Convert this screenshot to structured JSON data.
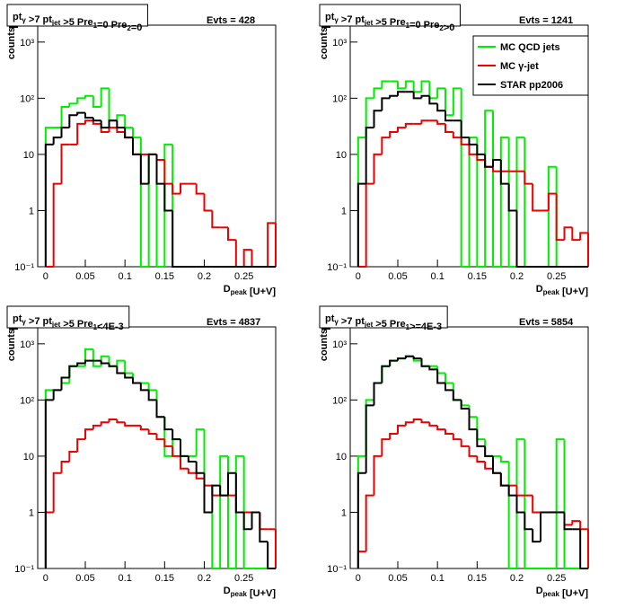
{
  "chart_data": [
    {
      "type": "histogram",
      "title_parts": [
        {
          "t": "pt",
          "sub": "γ"
        },
        {
          "t": " >7  pt",
          "sub": "jet"
        },
        {
          "t": " >5 Pre",
          "sub": "1"
        },
        {
          "t": "=0 Pre",
          "sub": "2"
        },
        {
          "t": "=0"
        }
      ],
      "events": "Evts = 428",
      "ylabel": "counts",
      "xlabel_parts": [
        {
          "t": "D",
          "sub": "peak"
        },
        {
          "t": "  [U+V]"
        }
      ],
      "bins": [
        0,
        0.01,
        0.02,
        0.03,
        0.04,
        0.05,
        0.06,
        0.07,
        0.08,
        0.09,
        0.1,
        0.11,
        0.12,
        0.13,
        0.14,
        0.15,
        0.16,
        0.17,
        0.18,
        0.19,
        0.2,
        0.21,
        0.22,
        0.23,
        0.24,
        0.25,
        0.26,
        0.27,
        0.28,
        0.29
      ],
      "xlim": [
        -0.01,
        0.29
      ],
      "xticks": [
        0,
        0.05,
        0.1,
        0.15,
        0.2,
        0.25
      ],
      "ylim": [
        0.1,
        2000
      ],
      "log_y": true,
      "yticks": [
        {
          "value": 0.1,
          "label": "10⁻¹"
        },
        1,
        10,
        {
          "value": 100,
          "label": "10²"
        },
        {
          "value": 1000,
          "label": "10³"
        }
      ],
      "series": [
        {
          "color": "#00ee00",
          "values": [
            30,
            30,
            70,
            80,
            100,
            110,
            70,
            150,
            40,
            50,
            30,
            20,
            0,
            10,
            0,
            15,
            0,
            0,
            0,
            0,
            0,
            0,
            0,
            0,
            0,
            0,
            0,
            0,
            0
          ]
        },
        {
          "color": "#ee0000",
          "values": [
            0,
            3,
            15,
            15,
            35,
            40,
            35,
            25,
            30,
            25,
            20,
            10,
            10,
            10,
            8,
            3,
            2,
            3,
            3,
            2,
            1,
            0.5,
            0.5,
            0.3,
            0,
            0.2,
            0,
            0,
            0.6
          ]
        },
        {
          "color": "#000000",
          "values": [
            15,
            20,
            30,
            50,
            55,
            45,
            40,
            30,
            40,
            30,
            20,
            10,
            3,
            10,
            3,
            1,
            0,
            0,
            0,
            0,
            0,
            0,
            0,
            0,
            0,
            0,
            0,
            0,
            0
          ]
        }
      ]
    },
    {
      "type": "histogram",
      "title_parts": [
        {
          "t": "pt",
          "sub": "γ"
        },
        {
          "t": " >7  pt",
          "sub": "jet"
        },
        {
          "t": " >5 Pre",
          "sub": "1"
        },
        {
          "t": "=0 Pre",
          "sub": "2"
        },
        {
          "t": ">0"
        }
      ],
      "events": "Evts = 1241",
      "ylabel": "counts",
      "xlabel_parts": [
        {
          "t": "D",
          "sub": "peak"
        },
        {
          "t": "  [U+V]"
        }
      ],
      "bins": [
        0,
        0.01,
        0.02,
        0.03,
        0.04,
        0.05,
        0.06,
        0.07,
        0.08,
        0.09,
        0.1,
        0.11,
        0.12,
        0.13,
        0.14,
        0.15,
        0.16,
        0.17,
        0.18,
        0.19,
        0.2,
        0.21,
        0.22,
        0.23,
        0.24,
        0.25,
        0.26,
        0.27,
        0.28,
        0.29
      ],
      "xlim": [
        -0.01,
        0.29
      ],
      "xticks": [
        0,
        0.05,
        0.1,
        0.15,
        0.2,
        0.25
      ],
      "ylim": [
        0.1,
        2000
      ],
      "log_y": true,
      "yticks": [
        {
          "value": 0.1,
          "label": "10⁻¹"
        },
        1,
        10,
        {
          "value": 100,
          "label": "10²"
        },
        {
          "value": 1000,
          "label": "10³"
        }
      ],
      "legend": "top-right",
      "series": [
        {
          "name": "MC QCD jets",
          "color": "#00ee00",
          "values": [
            20,
            100,
            150,
            200,
            200,
            150,
            200,
            130,
            200,
            100,
            150,
            50,
            150,
            0,
            20,
            0,
            60,
            0,
            20,
            0,
            20,
            0,
            0,
            0,
            6,
            0,
            0,
            0,
            0
          ]
        },
        {
          "name": "MC γ-jet",
          "color": "#ee0000",
          "values": [
            0,
            3,
            10,
            20,
            25,
            30,
            35,
            35,
            40,
            40,
            35,
            25,
            20,
            15,
            10,
            8,
            6,
            5,
            5,
            5,
            5,
            3,
            1,
            1,
            2,
            0.3,
            0.5,
            0.3,
            0.4
          ]
        },
        {
          "name": "STAR pp2006",
          "color": "#000000",
          "values": [
            3,
            30,
            60,
            100,
            110,
            130,
            130,
            100,
            110,
            80,
            60,
            40,
            40,
            20,
            15,
            10,
            6,
            8,
            3,
            1,
            0,
            0,
            0,
            0,
            0,
            0,
            0,
            0,
            0
          ]
        }
      ]
    },
    {
      "type": "histogram",
      "title_parts": [
        {
          "t": "pt",
          "sub": "γ"
        },
        {
          "t": " >7  pt",
          "sub": "jet"
        },
        {
          "t": " >5 Pre",
          "sub": "1"
        },
        {
          "t": "<4E-3"
        }
      ],
      "events": "Evts = 4837",
      "ylabel": "counts",
      "xlabel_parts": [
        {
          "t": "D",
          "sub": "peak"
        },
        {
          "t": "  [U+V]"
        }
      ],
      "bins": [
        0,
        0.01,
        0.02,
        0.03,
        0.04,
        0.05,
        0.06,
        0.07,
        0.08,
        0.09,
        0.1,
        0.11,
        0.12,
        0.13,
        0.14,
        0.15,
        0.16,
        0.17,
        0.18,
        0.19,
        0.2,
        0.21,
        0.22,
        0.23,
        0.24,
        0.25,
        0.26,
        0.27,
        0.28,
        0.29
      ],
      "xlim": [
        -0.01,
        0.29
      ],
      "xticks": [
        0,
        0.05,
        0.1,
        0.15,
        0.2,
        0.25
      ],
      "ylim": [
        0.1,
        2000
      ],
      "log_y": true,
      "yticks": [
        {
          "value": 0.1,
          "label": "10⁻¹"
        },
        1,
        10,
        {
          "value": 100,
          "label": "10²"
        },
        {
          "value": 1000,
          "label": "10³"
        }
      ],
      "series": [
        {
          "color": "#00ee00",
          "values": [
            150,
            150,
            200,
            400,
            400,
            800,
            400,
            600,
            400,
            500,
            300,
            200,
            200,
            150,
            50,
            10,
            20,
            10,
            10,
            30,
            1,
            0,
            10,
            0,
            10,
            0,
            0,
            0,
            0
          ]
        },
        {
          "color": "#ee0000",
          "values": [
            1,
            5,
            8,
            12,
            20,
            30,
            35,
            40,
            45,
            40,
            35,
            35,
            30,
            25,
            20,
            15,
            10,
            6,
            5,
            4,
            3,
            2,
            2,
            2,
            1,
            1,
            1,
            0.5,
            0.5
          ]
        },
        {
          "color": "#000000",
          "values": [
            100,
            150,
            250,
            400,
            450,
            500,
            500,
            450,
            400,
            300,
            250,
            200,
            150,
            100,
            50,
            30,
            20,
            10,
            8,
            5,
            1,
            3,
            2,
            5,
            1,
            0.5,
            1,
            0.3,
            0
          ]
        }
      ]
    },
    {
      "type": "histogram",
      "title_parts": [
        {
          "t": "pt",
          "sub": "γ"
        },
        {
          "t": " >7  pt",
          "sub": "jet"
        },
        {
          "t": " >5 Pre",
          "sub": "1"
        },
        {
          "t": ">=4E-3"
        }
      ],
      "events": "Evts = 5854",
      "ylabel": "counts",
      "xlabel_parts": [
        {
          "t": "D",
          "sub": "peak"
        },
        {
          "t": "  [U+V]"
        }
      ],
      "bins": [
        0,
        0.01,
        0.02,
        0.03,
        0.04,
        0.05,
        0.06,
        0.07,
        0.08,
        0.09,
        0.1,
        0.11,
        0.12,
        0.13,
        0.14,
        0.15,
        0.16,
        0.17,
        0.18,
        0.19,
        0.2,
        0.21,
        0.22,
        0.23,
        0.24,
        0.25,
        0.26,
        0.27,
        0.28,
        0.29
      ],
      "xlim": [
        -0.01,
        0.29
      ],
      "xticks": [
        0,
        0.05,
        0.1,
        0.15,
        0.2,
        0.25
      ],
      "ylim": [
        0.1,
        2000
      ],
      "log_y": true,
      "yticks": [
        {
          "value": 0.1,
          "label": "10⁻¹"
        },
        1,
        10,
        {
          "value": 100,
          "label": "10²"
        },
        {
          "value": 1000,
          "label": "10³"
        }
      ],
      "series": [
        {
          "color": "#00ee00",
          "values": [
            10,
            100,
            200,
            400,
            500,
            550,
            600,
            500,
            400,
            400,
            300,
            200,
            100,
            80,
            50,
            20,
            10,
            10,
            8,
            0,
            20,
            0,
            0,
            0,
            0,
            20,
            0,
            0,
            0
          ]
        },
        {
          "color": "#ee0000",
          "values": [
            0.2,
            2,
            10,
            20,
            25,
            35,
            40,
            45,
            40,
            35,
            30,
            25,
            20,
            15,
            10,
            8,
            6,
            5,
            3,
            3,
            2,
            2,
            1,
            1,
            1,
            1,
            0.6,
            0.7,
            0.5
          ]
        },
        {
          "color": "#000000",
          "values": [
            5,
            80,
            200,
            400,
            500,
            550,
            600,
            550,
            400,
            350,
            200,
            150,
            100,
            70,
            30,
            15,
            10,
            5,
            3,
            2,
            1,
            0.5,
            0.3,
            1,
            1,
            1,
            0.5,
            0.5,
            0
          ]
        }
      ]
    }
  ]
}
